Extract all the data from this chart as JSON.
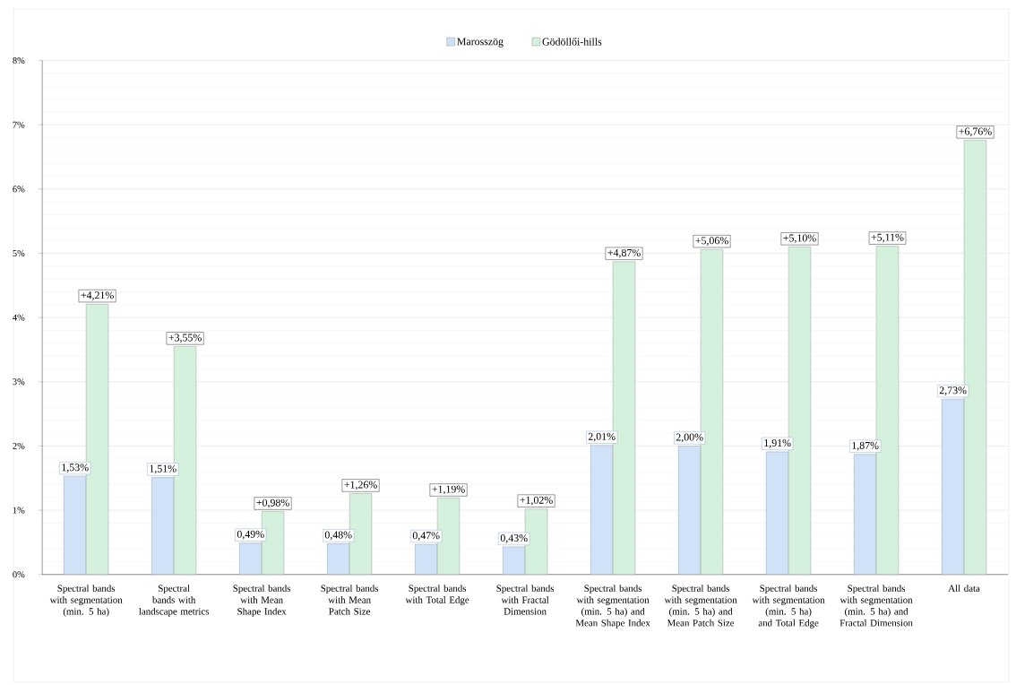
{
  "chart_data": {
    "type": "bar",
    "categories": [
      "Spectral bands with segmentation (min. 5 ha)",
      "Spectral bands with landscape metrics",
      "Spectral bands with Mean Shape Index",
      "Spectral bands with Mean Patch Size",
      "Spectral bands with Total Edge",
      "Spectral bands with Fractal Dimension",
      "Spectral bands with segmentation (min. 5 ha) and Mean Shape Index",
      "Spectral bands with segmentation (min. 5 ha) and Mean Patch Size",
      "Spectral bands with segmentation (min. 5 ha) and Total Edge",
      "Spectral bands with segmentation (min. 5 ha) and Fractal Dimension",
      "All data"
    ],
    "series": [
      {
        "name": "Marosszög",
        "color": "#cfe2f7",
        "values": [
          1.53,
          1.51,
          0.49,
          0.48,
          0.47,
          0.43,
          2.01,
          2.0,
          1.91,
          1.87,
          2.73
        ],
        "value_labels": [
          "1,53%",
          "1,51%",
          "0,49%",
          "0,48%",
          "0,47%",
          "0,43%",
          "2,01%",
          "2,00%",
          "1,91%",
          "1,87%",
          "2,73%"
        ]
      },
      {
        "name": "Gödöllői-hills",
        "color": "#d5f0dc",
        "values": [
          4.21,
          3.55,
          0.98,
          1.26,
          1.19,
          1.02,
          4.87,
          5.06,
          5.1,
          5.11,
          6.76
        ],
        "value_labels": [
          "+4,21%",
          "+3,55%",
          "+0,98%",
          "+1,26%",
          "+1,19%",
          "+1,02%",
          "+4,87%",
          "+5,06%",
          "+5,10%",
          "+5,11%",
          "+6,76%"
        ]
      }
    ],
    "ylim": [
      0,
      8
    ],
    "yticks": [
      {
        "value": 0,
        "label": "0%"
      },
      {
        "value": 1,
        "label": "1%"
      },
      {
        "value": 2,
        "label": "2%"
      },
      {
        "value": 3,
        "label": "3%"
      },
      {
        "value": 4,
        "label": "4%"
      },
      {
        "value": 5,
        "label": "5%"
      },
      {
        "value": 6,
        "label": "6%"
      },
      {
        "value": 7,
        "label": "7%"
      },
      {
        "value": 8,
        "label": "8%"
      }
    ],
    "grid": true,
    "legend": "top"
  }
}
